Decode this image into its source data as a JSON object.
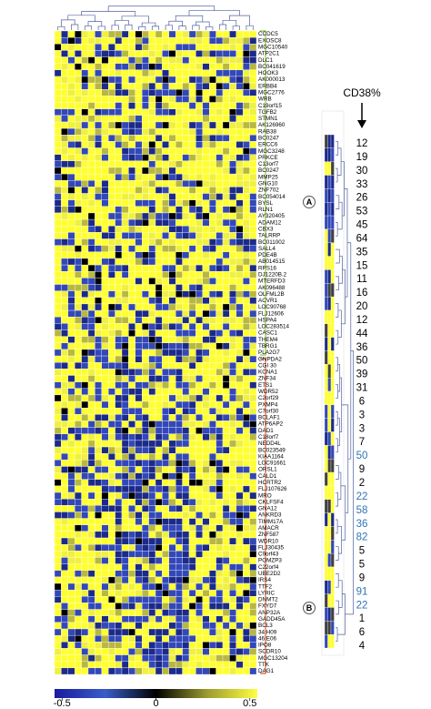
{
  "genes": [
    "CCDC5",
    "EXOSC8",
    "MGC10540",
    "ATP2C1",
    "DLC1",
    "BC041619",
    "HOOK3",
    "AK000013",
    "ERBB4",
    "MGC2776",
    "WRB",
    "C19orf15",
    "TGFB2",
    "STMN1",
    "AK126960",
    "RAB38",
    "BC0247",
    "ERCC6",
    "MGC3248",
    "PRKCE",
    "C13orf7",
    "BC0247",
    "MMP25",
    "GNG10",
    "ZNF702",
    "BC054014",
    "BYSL",
    "RLN1",
    "AY320405",
    "ADAM12",
    "CBX3",
    "TALRRP",
    "BC011002",
    "SALL4",
    "PDE4B",
    "AB014515",
    "RPS16",
    "DJ1220B.2",
    "MTERFD3",
    "AK096488",
    "OLFML2B",
    "ACVR1",
    "LOC90768",
    "FLJ12606",
    "HSPA4",
    "LOC283514",
    "CASC1",
    "THEM4",
    "TBRG1",
    "PLA2G7",
    "GNPDA2",
    "CGI 30",
    "KCNA1",
    "ZNF34",
    "ETS1",
    "WDR52",
    "C2orf29",
    "PXMP4",
    "C7orf30",
    "BCLAF1",
    "ATP6AP2",
    "DAD1",
    "C18orf7",
    "NEDD4L",
    "BC023549",
    "KIAA1164",
    "LOC91661",
    "ORSL1",
    "CALD1",
    "HCRTR2",
    "FLJ107626",
    "MRO",
    "CKLFSF4",
    "GNA12",
    "ANKRD3",
    "TIMM17A",
    "AMACR",
    "ZNF587",
    "WDR10",
    "FLJ30435",
    "C9orf43",
    "POMZP3",
    "C22orf4",
    "UBE2D2",
    "IRS4",
    "TTF2",
    "LYRIC",
    "DNMT2",
    "FXYD7",
    "ANP32A",
    "GADD45A",
    "BCL3",
    "34:H09",
    "46:E06",
    "IPO8",
    "SCDR10",
    "MGC13204",
    "TTK",
    "DAG1"
  ],
  "cluster_labels": [
    "A",
    "B"
  ],
  "cd38": {
    "label": "CD38%",
    "values": [
      12,
      19,
      30,
      33,
      26,
      53,
      45,
      64,
      35,
      15,
      11,
      16,
      20,
      12,
      44,
      36,
      50,
      39,
      31,
      6,
      3,
      3,
      7,
      50,
      9,
      2,
      22,
      58,
      36,
      82,
      5,
      5,
      9,
      91,
      22,
      1,
      6,
      4
    ],
    "colors": [
      "#000",
      "#000",
      "#000",
      "#000",
      "#000",
      "#000",
      "#000",
      "#000",
      "#000",
      "#000",
      "#000",
      "#000",
      "#000",
      "#000",
      "#000",
      "#000",
      "#000",
      "#000",
      "#000",
      "#000",
      "#000",
      "#000",
      "#000",
      "#2e75b6",
      "#000",
      "#000",
      "#2e75b6",
      "#2e75b6",
      "#2e75b6",
      "#2e75b6",
      "#000",
      "#000",
      "#000",
      "#2e75b6",
      "#2e75b6",
      "#000",
      "#000",
      "#000"
    ]
  },
  "colorbar": {
    "clim": [
      -0.54,
      0.54
    ],
    "ticks": [
      -0.5,
      0,
      0.5
    ]
  }
}
